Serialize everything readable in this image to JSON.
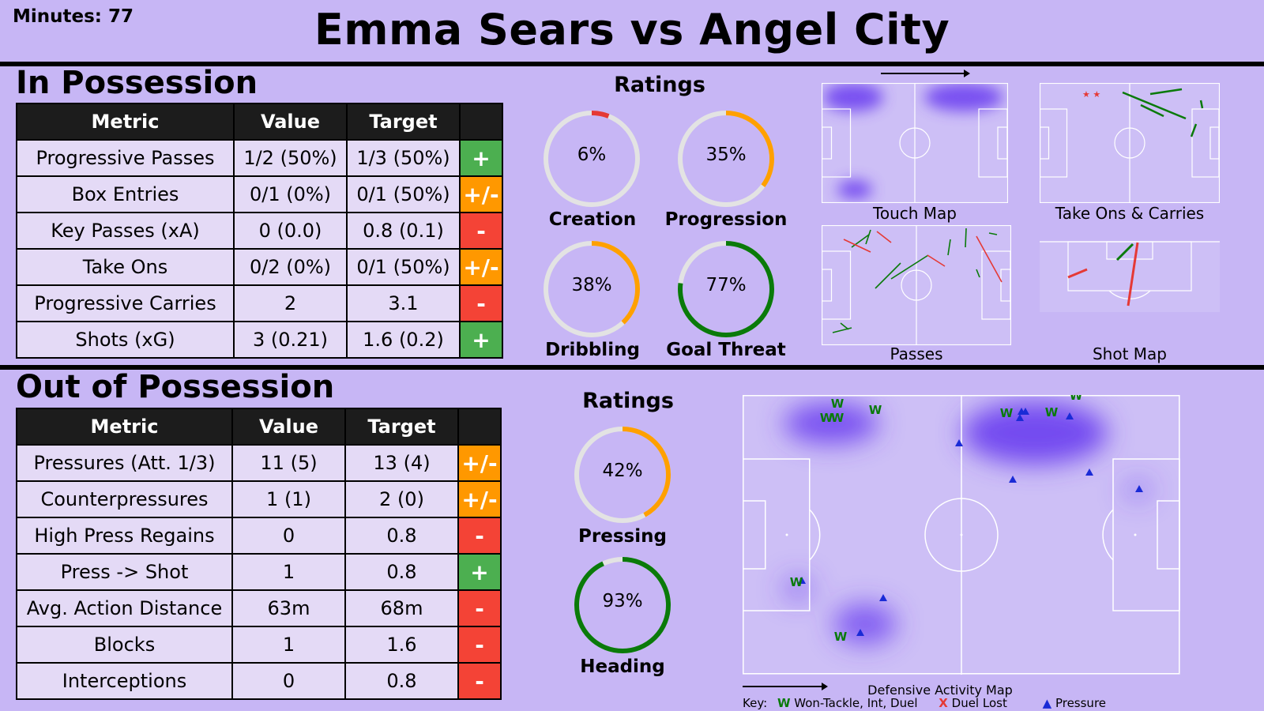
{
  "header": {
    "minutes": "Minutes: 77",
    "title": "Emma Sears vs Angel City"
  },
  "in_possession": {
    "title": "In Possession",
    "columns": [
      "Metric",
      "Value",
      "Target",
      ""
    ],
    "rows": [
      {
        "metric": "Progressive Passes",
        "value": "1/2 (50%)",
        "target": "1/3 (50%)",
        "flag": "+",
        "flag_color": "#4caf50"
      },
      {
        "metric": "Box Entries",
        "value": "0/1 (0%)",
        "target": "0/1 (50%)",
        "flag": "+/-",
        "flag_color": "#ff9800"
      },
      {
        "metric": "Key Passes (xA)",
        "value": "0 (0.0)",
        "target": "0.8 (0.1)",
        "flag": "-",
        "flag_color": "#f44336"
      },
      {
        "metric": "Take Ons",
        "value": "0/2 (0%)",
        "target": "0/1 (50%)",
        "flag": "+/-",
        "flag_color": "#ff9800"
      },
      {
        "metric": "Progressive Carries",
        "value": "2",
        "target": "3.1",
        "flag": "-",
        "flag_color": "#f44336"
      },
      {
        "metric": "Shots (xG)",
        "value": "3 (0.21)",
        "target": "1.6 (0.2)",
        "flag": "+",
        "flag_color": "#4caf50"
      }
    ],
    "ratings_title": "Ratings",
    "ratings": [
      {
        "label": "Creation",
        "value": "6%",
        "pct": 6,
        "color": "#e53935"
      },
      {
        "label": "Progression",
        "value": "35%",
        "pct": 35,
        "color": "#ffa000"
      },
      {
        "label": "Dribbling",
        "value": "38%",
        "pct": 38,
        "color": "#ffa000"
      },
      {
        "label": "Goal Threat",
        "value": "77%",
        "pct": 77,
        "color": "#0a7a0a"
      }
    ],
    "maps": [
      "Touch Map",
      "Take Ons & Carries",
      "Passes",
      "Shot Map"
    ]
  },
  "out_of_possession": {
    "title": "Out of Possession",
    "columns": [
      "Metric",
      "Value",
      "Target",
      ""
    ],
    "rows": [
      {
        "metric": "Pressures (Att. 1/3)",
        "value": "11 (5)",
        "target": "13 (4)",
        "flag": "+/-",
        "flag_color": "#ff9800"
      },
      {
        "metric": "Counterpressures",
        "value": "1 (1)",
        "target": "2 (0)",
        "flag": "+/-",
        "flag_color": "#ff9800"
      },
      {
        "metric": "High Press Regains",
        "value": "0",
        "target": "0.8",
        "flag": "-",
        "flag_color": "#f44336"
      },
      {
        "metric": "Press -> Shot",
        "value": "1",
        "target": "0.8",
        "flag": "+",
        "flag_color": "#4caf50"
      },
      {
        "metric": "Avg. Action Distance",
        "value": "63m",
        "target": "68m",
        "flag": "-",
        "flag_color": "#f44336"
      },
      {
        "metric": "Blocks",
        "value": "1",
        "target": "1.6",
        "flag": "-",
        "flag_color": "#f44336"
      },
      {
        "metric": "Interceptions",
        "value": "0",
        "target": "0.8",
        "flag": "-",
        "flag_color": "#f44336"
      }
    ],
    "ratings_title": "Ratings",
    "ratings": [
      {
        "label": "Pressing",
        "value": "42%",
        "pct": 42,
        "color": "#ffa000"
      },
      {
        "label": "Heading",
        "value": "93%",
        "pct": 93,
        "color": "#0a7a0a"
      }
    ],
    "map_title": "Defensive Activity Map",
    "key": {
      "label": "Key:",
      "won_symbol": "W",
      "won": "Won-Tackle, Int, Duel",
      "lost_symbol": "X",
      "lost": "Duel Lost",
      "pressure_symbol": "▲",
      "pressure": "Pressure"
    },
    "won_symbol_char": "W"
  },
  "colors": {
    "background": "#c7b6f5",
    "heat": "#6a3df0",
    "won": "#0a7a0a",
    "pressure": "#1a2bd6",
    "lost": "#e53935"
  }
}
